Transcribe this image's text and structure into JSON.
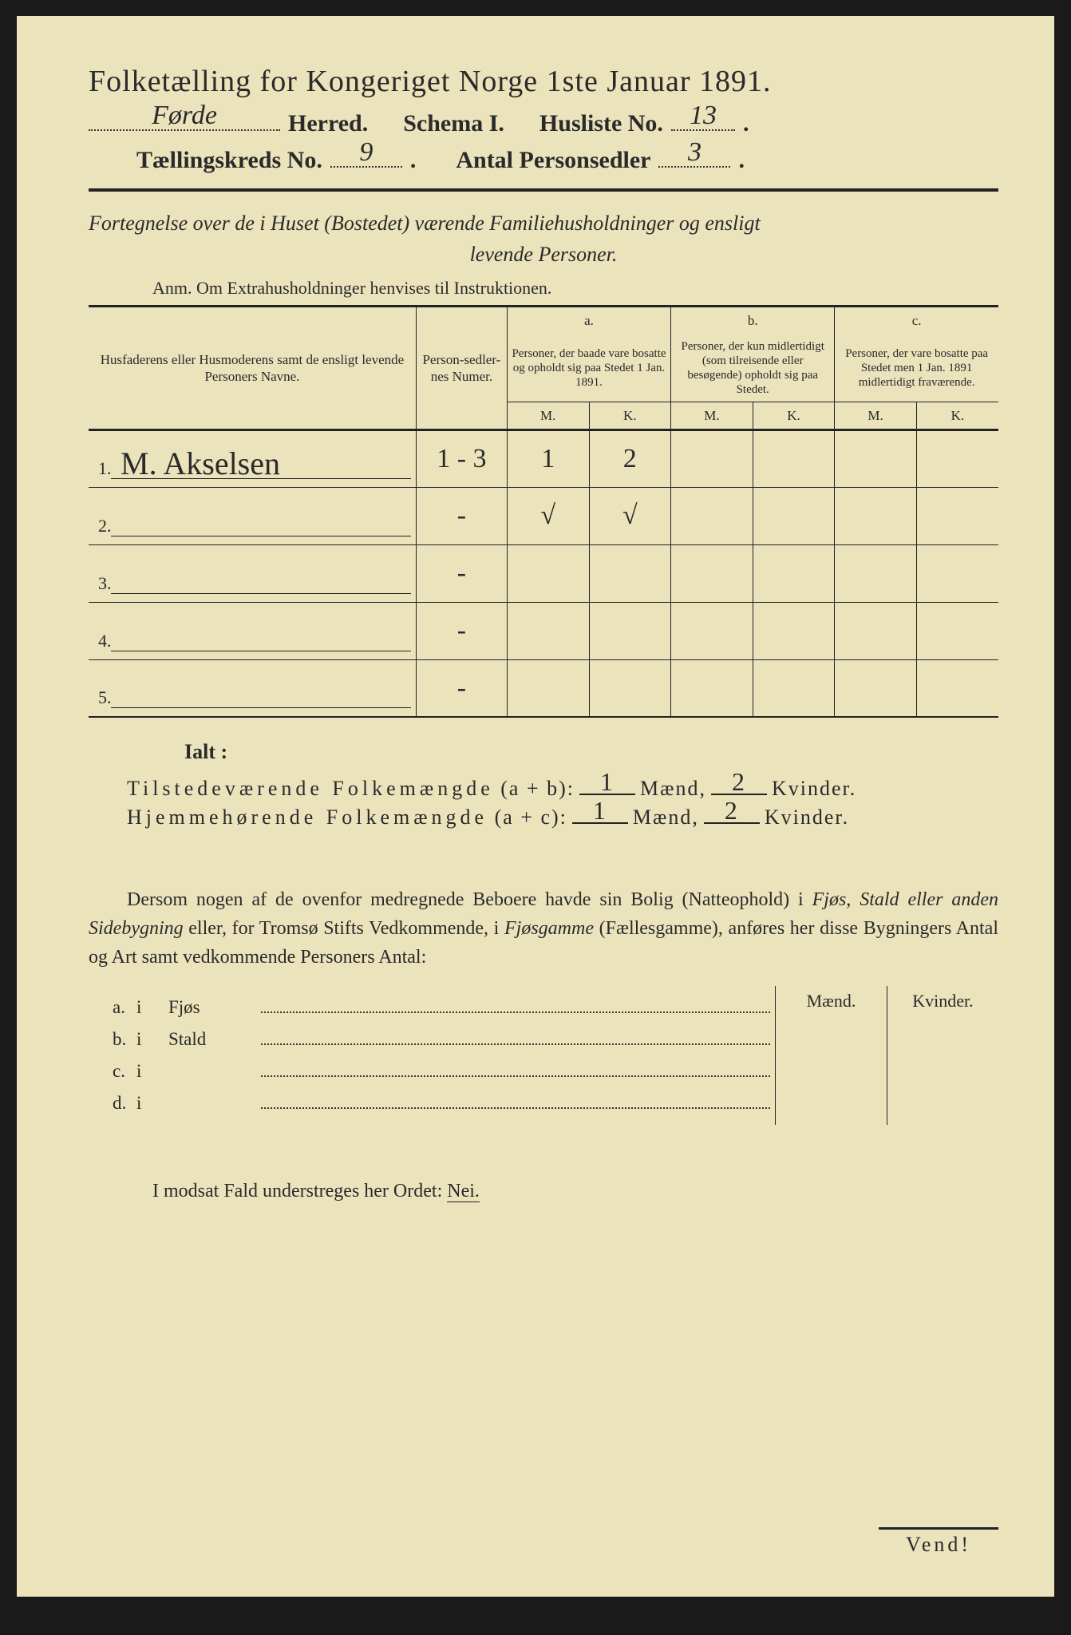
{
  "title": "Folketælling for Kongeriget Norge 1ste Januar 1891.",
  "header": {
    "herred_value": "Førde",
    "herred_label": "Herred.",
    "schema_label": "Schema I.",
    "husliste_label": "Husliste No.",
    "husliste_value": "13",
    "kreds_label": "Tællingskreds No.",
    "kreds_value": "9",
    "personsedler_label": "Antal Personsedler",
    "personsedler_value": "3"
  },
  "subtitle_line1": "Fortegnelse over de i Huset (Bostedet) værende Familiehusholdninger og ensligt",
  "subtitle_line2": "levende Personer.",
  "anm": "Anm.  Om Extrahusholdninger henvises til Instruktionen.",
  "table": {
    "col_names": "Husfaderens eller Husmoderens samt de ensligt levende Personers Navne.",
    "col_num": "Person-sedler-nes Numer.",
    "col_a_head": "a.",
    "col_a_desc": "Personer, der baade vare bosatte og opholdt sig paa Stedet 1 Jan. 1891.",
    "col_b_head": "b.",
    "col_b_desc": "Personer, der kun midlertidigt (som tilreisende eller besøgende) opholdt sig paa Stedet.",
    "col_c_head": "c.",
    "col_c_desc": "Personer, der vare bosatte paa Stedet men 1 Jan. 1891 midlertidigt fraværende.",
    "m_label": "M.",
    "k_label": "K.",
    "rows": [
      {
        "num": "1.",
        "name": "M. Akselsen",
        "sedler": "1 - 3",
        "a_m": "1",
        "a_k": "2",
        "b_m": "",
        "b_k": "",
        "c_m": "",
        "c_k": ""
      },
      {
        "num": "2.",
        "name": "",
        "sedler": "-",
        "a_m": "√",
        "a_k": "√",
        "b_m": "",
        "b_k": "",
        "c_m": "",
        "c_k": ""
      },
      {
        "num": "3.",
        "name": "",
        "sedler": "-",
        "a_m": "",
        "a_k": "",
        "b_m": "",
        "b_k": "",
        "c_m": "",
        "c_k": ""
      },
      {
        "num": "4.",
        "name": "",
        "sedler": "-",
        "a_m": "",
        "a_k": "",
        "b_m": "",
        "b_k": "",
        "c_m": "",
        "c_k": ""
      },
      {
        "num": "5.",
        "name": "",
        "sedler": "-",
        "a_m": "",
        "a_k": "",
        "b_m": "",
        "b_k": "",
        "c_m": "",
        "c_k": ""
      }
    ]
  },
  "ialt_label": "Ialt :",
  "totals": {
    "tilstede_label": "Tilstedeværende Folkemængde",
    "tilstede_formula": "(a + b):",
    "hjemme_label": "Hjemmehørende Folkemængde",
    "hjemme_formula": "(a + c):",
    "maend_label": "Mænd,",
    "kvinder_label": "Kvinder.",
    "tilstede_m": "1",
    "tilstede_k": "2",
    "hjemme_m": "1",
    "hjemme_k": "2"
  },
  "para": "Dersom nogen af de ovenfor medregnede Beboere havde sin Bolig (Natteophold) i Fjøs, Stald eller anden Sidebygning eller, for Tromsø Stifts Vedkommende, i Fjøsgamme (Fællesgamme), anføres her disse Bygningers Antal og Art samt vedkommende Personers Antal:",
  "dwelling": {
    "maend": "Mænd.",
    "kvinder": "Kvinder.",
    "rows": [
      {
        "key": "a.",
        "i": "i",
        "name": "Fjøs"
      },
      {
        "key": "b.",
        "i": "i",
        "name": "Stald"
      },
      {
        "key": "c.",
        "i": "i",
        "name": ""
      },
      {
        "key": "d.",
        "i": "i",
        "name": ""
      }
    ]
  },
  "nei_line_prefix": "I modsat Fald understreges her Ordet: ",
  "nei_word": "Nei.",
  "vend": "Vend!",
  "colors": {
    "paper": "#ebe3bc",
    "ink": "#2a2a2a",
    "border_outer": "#1a1a1a"
  }
}
